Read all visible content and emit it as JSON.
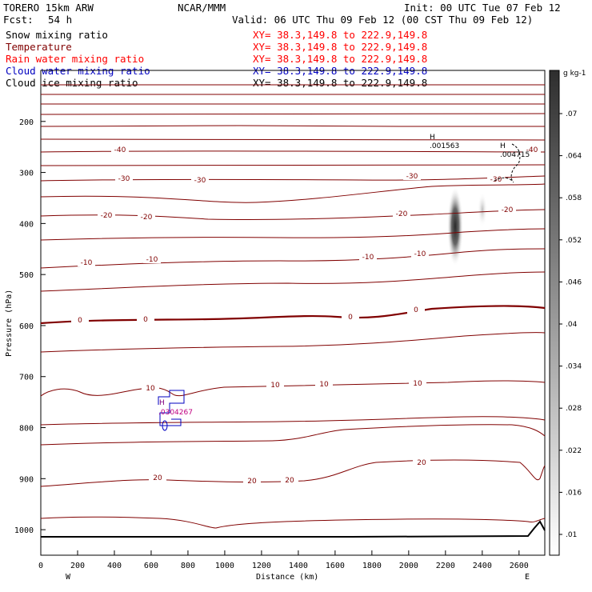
{
  "header": {
    "model": "TORERO  15km ARW",
    "center": "NCAR/MMM",
    "init": "Init: 00 UTC Tue 07 Feb 12",
    "fcst_label": "Fcst:",
    "fcst_value": "54 h",
    "valid": "Valid: 06 UTC Thu 09 Feb 12 (00 CST Thu 09 Feb 12)"
  },
  "legend": [
    {
      "label": "Snow mixing ratio",
      "xy": "XY=  38.3,149.8 to 222.9,149.8",
      "label_color": "#000000",
      "xy_color": "#ff0000"
    },
    {
      "label": "Temperature",
      "xy": "XY=  38.3,149.8 to 222.9,149.8",
      "label_color": "#800000",
      "xy_color": "#ff0000"
    },
    {
      "label": "Rain water mixing ratio",
      "xy": "XY=  38.3,149.8 to 222.9,149.8",
      "label_color": "#ff0000",
      "xy_color": "#ff0000"
    },
    {
      "label": "Cloud water mixing ratio",
      "xy": "XY=  38.3,149.8 to 222.9,149.8",
      "label_color": "#0000c0",
      "xy_color": "#0000c0"
    },
    {
      "label": "Cloud ice mixing ratio",
      "xy": "XY=  38.3,149.8 to 222.9,149.8",
      "label_color": "#000000",
      "xy_color": "#000000"
    }
  ],
  "chart_data": {
    "type": "contour",
    "xlabel": "Distance (km)",
    "ylabel": "Pressure (hPa)",
    "x_range": [
      0,
      2740
    ],
    "y_range": [
      1050,
      100
    ],
    "x_ticks": [
      0,
      200,
      400,
      600,
      800,
      1000,
      1200,
      1400,
      1600,
      1800,
      2000,
      2200,
      2400,
      2600
    ],
    "y_ticks": [
      200,
      300,
      400,
      500,
      600,
      700,
      800,
      900,
      1000
    ],
    "x_end_labels": {
      "left": "W",
      "right": "E"
    },
    "colorbar": {
      "unit": "g kg-1",
      "ticks": [
        ".07",
        ".064",
        ".058",
        ".052",
        ".046",
        ".04",
        ".034",
        ".028",
        ".022",
        ".016",
        ".01"
      ]
    },
    "temperature_contour_labels": [
      "-40",
      "-40",
      "-30",
      "-30",
      "-30",
      "-30",
      "-20",
      "-20",
      "-20",
      "-20",
      "-10",
      "-10",
      "-10",
      "-10",
      "0",
      "0",
      "0",
      "0",
      "10",
      "10",
      "10",
      "10",
      "20",
      "20",
      "20",
      "20"
    ],
    "snow_maxima": [
      {
        "label": "H",
        "value": ".001563"
      },
      {
        "label": "H",
        "value": ".004715"
      }
    ],
    "cloud_water_maximum": {
      "label": "H",
      "value": ".0304267"
    }
  }
}
